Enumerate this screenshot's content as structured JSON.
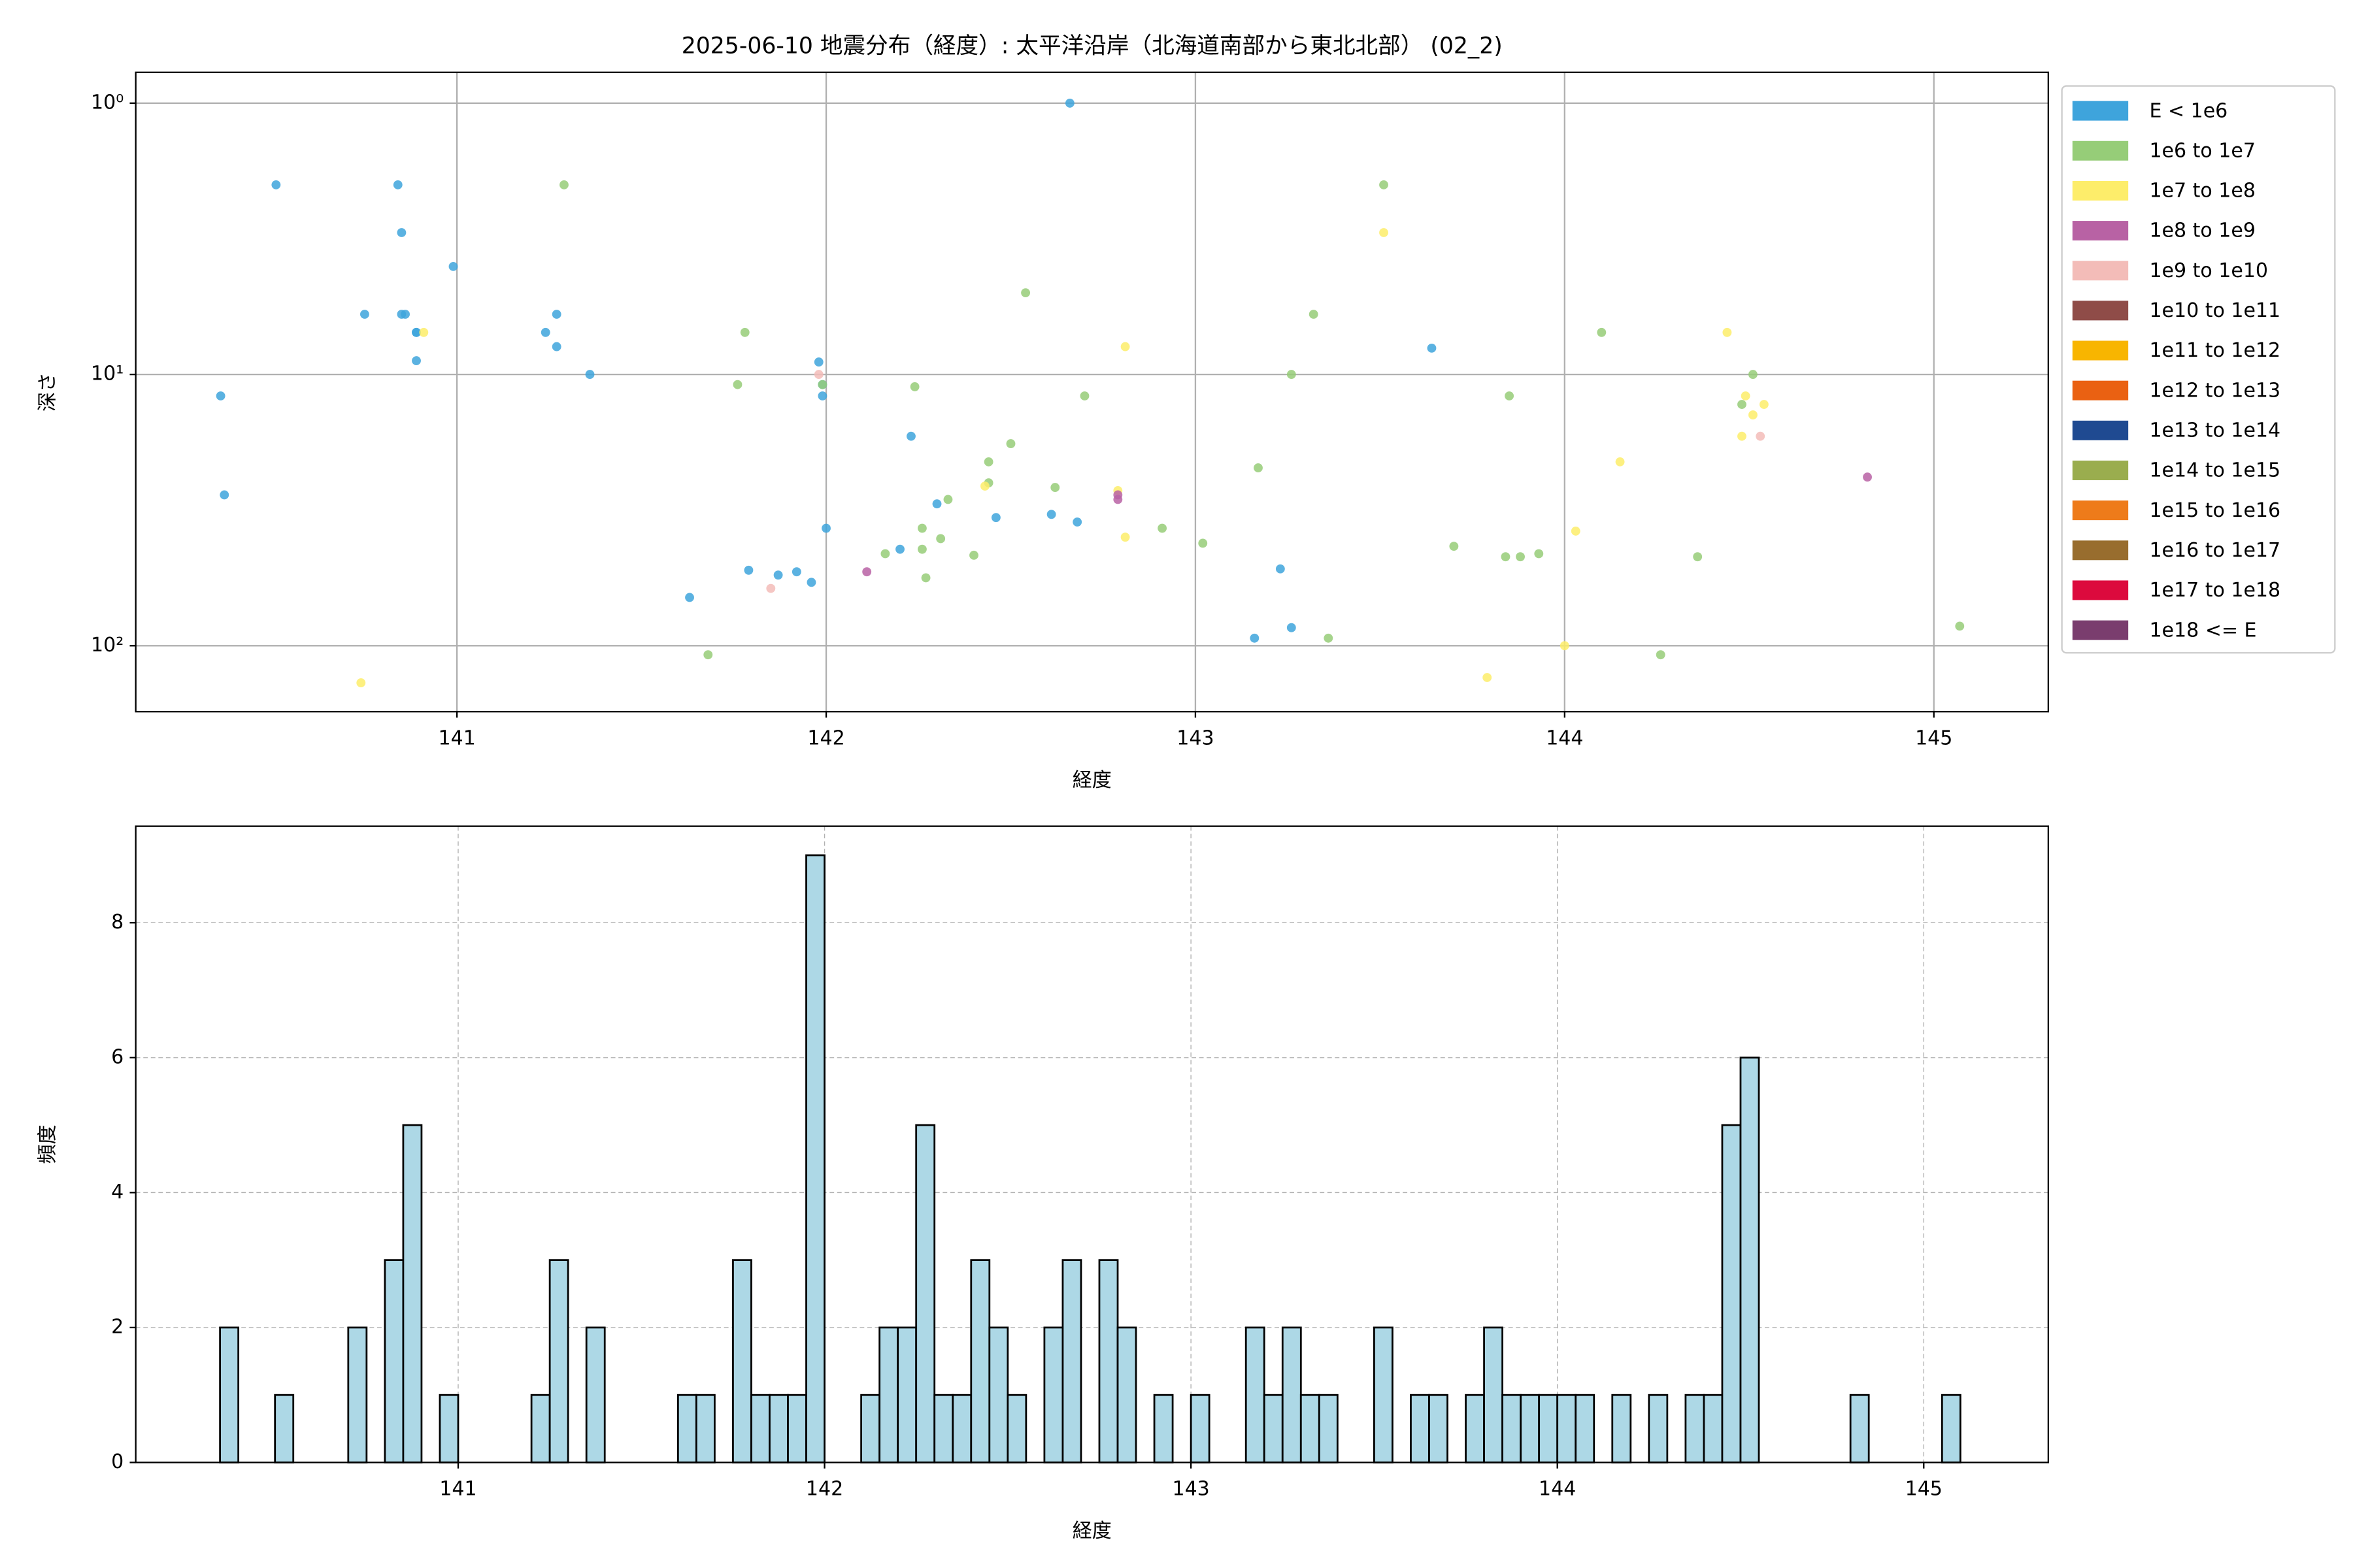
{
  "chart_data": [
    {
      "type": "scatter",
      "title": "2025-06-10 地震分布（経度）: 太平洋沿岸（北海道南部から東北北部） (02_2)",
      "xlabel": "経度",
      "ylabel": "深さ",
      "xlim": [
        140.13,
        145.31
      ],
      "ylim": [
        175,
        0.77
      ],
      "log_y": true,
      "grid": true,
      "legend": "outside-upper-right",
      "xticks": [
        141,
        142,
        143,
        144,
        145
      ],
      "yticks": [
        {
          "value": 1,
          "label": "10⁰"
        },
        {
          "value": 10,
          "label": "10¹"
        },
        {
          "value": 100,
          "label": "10²"
        }
      ],
      "series": [
        {
          "name": "E < 1e6",
          "color": "#3ea4dc",
          "x": [
            140.36,
            140.37,
            140.51,
            140.75,
            140.84,
            140.85,
            140.85,
            140.86,
            140.89,
            140.89,
            140.89,
            140.99,
            141.24,
            141.27,
            141.27,
            141.36,
            141.63,
            141.79,
            141.87,
            141.92,
            141.96,
            141.98,
            141.99,
            141.99,
            142.0,
            142.2,
            142.23,
            142.3,
            142.46,
            142.61,
            142.66,
            142.68,
            143.16,
            143.23,
            143.26,
            143.64
          ],
          "values": [
            12.0,
            27.8,
            2.0,
            6.0,
            2.0,
            3.0,
            6.0,
            6.0,
            7.0,
            7.0,
            8.9,
            4.0,
            7.0,
            6.0,
            7.9,
            10,
            66.4,
            52.7,
            54.9,
            53.4,
            58.4,
            9.0,
            10.9,
            12.0,
            36.9,
            44.1,
            16.9,
            30.0,
            33.7,
            32.8,
            1.0,
            35.0,
            93.8,
            52.1,
            85.8,
            8.0
          ]
        },
        {
          "name": "1e6 to 1e7",
          "color": "#96cd78",
          "x": [
            141.29,
            141.76,
            141.78,
            141.68,
            141.99,
            142.16,
            142.24,
            142.26,
            142.26,
            142.27,
            142.31,
            142.33,
            142.4,
            142.44,
            142.44,
            142.5,
            142.54,
            142.62,
            142.7,
            142.91,
            143.02,
            143.17,
            143.26,
            143.32,
            143.36,
            143.51,
            143.7,
            143.85,
            143.84,
            143.88,
            143.93,
            144.1,
            144.26,
            144.36,
            144.48,
            144.51,
            145.07
          ],
          "values": [
            2.0,
            10.9,
            7.0,
            108,
            10.9,
            45.8,
            11.1,
            36.9,
            44.1,
            56.2,
            40.3,
            28.9,
            46.4,
            21.0,
            25.1,
            18.0,
            5.0,
            26.1,
            12.0,
            36.9,
            41.9,
            22.1,
            10,
            6.0,
            93.8,
            2.0,
            43.0,
            12.0,
            47.0,
            47.0,
            45.8,
            7.0,
            108,
            47.0,
            12.9,
            10,
            84.7
          ]
        },
        {
          "name": "1e7 to 1e8",
          "color": "#fded6a",
          "x": [
            140.74,
            140.91,
            142.43,
            142.79,
            142.81,
            142.81,
            143.51,
            143.79,
            144.0,
            144.03,
            144.15,
            144.44,
            144.49,
            144.48,
            144.51,
            144.54
          ],
          "values": [
            137,
            7.0,
            25.8,
            26.8,
            7.9,
            39.8,
            3.0,
            131,
            100,
            37.8,
            21.0,
            7.0,
            12.0,
            16.9,
            14.1,
            12.9
          ]
        },
        {
          "name": "1e8 to 1e9",
          "color": "#b862a4",
          "x": [
            142.11,
            142.79,
            142.79,
            144.82
          ],
          "values": [
            53.4,
            27.8,
            28.9,
            23.9
          ]
        },
        {
          "name": "1e9 to 1e10",
          "color": "#f3bcb8",
          "x": [
            141.85,
            141.98,
            144.53
          ],
          "values": [
            61.5,
            10,
            16.9
          ]
        },
        {
          "name": "1e10 to 1e11",
          "color": "#8f4c48",
          "x": [],
          "values": []
        },
        {
          "name": "1e11 to 1e12",
          "color": "#f8b500",
          "x": [],
          "values": []
        },
        {
          "name": "1e12 to 1e13",
          "color": "#ea6112",
          "x": [],
          "values": []
        },
        {
          "name": "1e13 to 1e14",
          "color": "#1f4a91",
          "x": [],
          "values": []
        },
        {
          "name": "1e14 to 1e15",
          "color": "#9aad4e",
          "x": [],
          "values": []
        },
        {
          "name": "1e15 to 1e16",
          "color": "#ee7b1a",
          "x": [],
          "values": []
        },
        {
          "name": "1e16 to 1e17",
          "color": "#986d2e",
          "x": [],
          "values": []
        },
        {
          "name": "1e17 to 1e18",
          "color": "#dc0a3d",
          "x": [],
          "values": []
        },
        {
          "name": "1e18 <= E",
          "color": "#7a3d6e",
          "x": [],
          "values": []
        }
      ]
    },
    {
      "type": "histogram",
      "xlabel": "経度",
      "ylabel": "頻度",
      "xlim": [
        140.12,
        145.34
      ],
      "ylim": [
        0,
        9.43
      ],
      "grid": true,
      "grid_style": "dashed",
      "color": "#add8e6",
      "edgecolor": "#000000",
      "xticks": [
        141,
        142,
        143,
        144,
        145
      ],
      "yticks": [
        0,
        2,
        4,
        6,
        8
      ],
      "bins": [
        140.35,
        140.4,
        140.45,
        140.5,
        140.55,
        140.6,
        140.65,
        140.7,
        140.75,
        140.8,
        140.85,
        140.9,
        140.95,
        141.0,
        141.05,
        141.1,
        141.15,
        141.2,
        141.25,
        141.3,
        141.35,
        141.4,
        141.45,
        141.5,
        141.55,
        141.6,
        141.65,
        141.7,
        141.75,
        141.8,
        141.85,
        141.9,
        141.95,
        142.0,
        142.05,
        142.1,
        142.15,
        142.2,
        142.25,
        142.3,
        142.35,
        142.4,
        142.45,
        142.5,
        142.55,
        142.6,
        142.65,
        142.7,
        142.75,
        142.8,
        142.85,
        142.9,
        142.95,
        143.0,
        143.05,
        143.1,
        143.15,
        143.2,
        143.25,
        143.3,
        143.35,
        143.4,
        143.45,
        143.5,
        143.55,
        143.6,
        143.65,
        143.7,
        143.75,
        143.8,
        143.85,
        143.9,
        143.95,
        144.0,
        144.05,
        144.1,
        144.15,
        144.2,
        144.25,
        144.3,
        144.35,
        144.4,
        144.45,
        144.5,
        144.55,
        144.6,
        144.65,
        144.7,
        144.75,
        144.8,
        144.85,
        144.9,
        144.95,
        145.0,
        145.05,
        145.1
      ],
      "counts": [
        2,
        0,
        0,
        1,
        0,
        0,
        0,
        2,
        0,
        3,
        5,
        0,
        1,
        0,
        0,
        0,
        0,
        1,
        3,
        0,
        2,
        0,
        0,
        0,
        0,
        1,
        1,
        0,
        3,
        1,
        1,
        1,
        9,
        0,
        0,
        1,
        2,
        2,
        5,
        1,
        1,
        3,
        2,
        1,
        0,
        2,
        3,
        0,
        3,
        2,
        0,
        1,
        0,
        1,
        0,
        0,
        2,
        1,
        2,
        1,
        1,
        0,
        0,
        2,
        0,
        1,
        1,
        0,
        1,
        2,
        1,
        1,
        1,
        1,
        1,
        0,
        1,
        0,
        1,
        0,
        1,
        1,
        5,
        6,
        0,
        0,
        0,
        0,
        0,
        1,
        0,
        0,
        0,
        0,
        1
      ]
    }
  ]
}
